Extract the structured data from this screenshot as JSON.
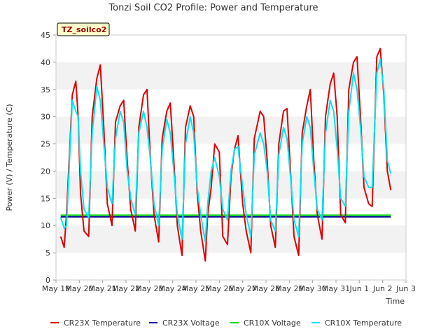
{
  "chart_data": {
    "type": "line",
    "title": "Tonzi Soil CO2 Profile: Power and Temperature",
    "xlabel": "Time",
    "ylabel": "Power (V) / Temperature (C)",
    "ylim": [
      0,
      45
    ],
    "yticks": [
      0,
      5,
      10,
      15,
      20,
      25,
      30,
      35,
      40,
      45
    ],
    "xlim": [
      0,
      15
    ],
    "xticks": [
      {
        "x": 0,
        "label": "May 19"
      },
      {
        "x": 1,
        "label": "May 20"
      },
      {
        "x": 2,
        "label": "May 21"
      },
      {
        "x": 3,
        "label": "May 22"
      },
      {
        "x": 4,
        "label": "May 23"
      },
      {
        "x": 5,
        "label": "May 24"
      },
      {
        "x": 6,
        "label": "May 25"
      },
      {
        "x": 7,
        "label": "May 26"
      },
      {
        "x": 8,
        "label": "May 27"
      },
      {
        "x": 9,
        "label": "May 28"
      },
      {
        "x": 10,
        "label": "May 29"
      },
      {
        "x": 11,
        "label": "May 30"
      },
      {
        "x": 12,
        "label": "May 31"
      },
      {
        "x": 13,
        "label": "Jun 1"
      },
      {
        "x": 14,
        "label": "Jun 2"
      },
      {
        "x": 15,
        "label": "Jun 3"
      }
    ],
    "grid": "horizontal bands",
    "legend_position": "bottom",
    "annotation": "TZ_soilco2",
    "series": [
      {
        "name": "CR23X Temperature",
        "color": "#dd0000",
        "x": [
          0.2,
          0.35,
          0.45,
          0.7,
          0.85,
          0.95,
          1.05,
          1.2,
          1.4,
          1.55,
          1.75,
          1.9,
          2.05,
          2.2,
          2.4,
          2.55,
          2.75,
          2.9,
          3.05,
          3.2,
          3.4,
          3.55,
          3.75,
          3.9,
          4.05,
          4.2,
          4.4,
          4.55,
          4.75,
          4.9,
          5.05,
          5.2,
          5.4,
          5.55,
          5.75,
          5.9,
          6.05,
          6.2,
          6.4,
          6.5,
          6.65,
          6.8,
          7.0,
          7.15,
          7.35,
          7.5,
          7.65,
          7.8,
          8.0,
          8.15,
          8.35,
          8.5,
          8.75,
          8.9,
          9.05,
          9.2,
          9.4,
          9.55,
          9.75,
          9.9,
          10.05,
          10.2,
          10.4,
          10.55,
          10.75,
          10.9,
          11.05,
          11.2,
          11.4,
          11.55,
          11.75,
          11.9,
          12.05,
          12.2,
          12.4,
          12.55,
          12.75,
          12.9,
          13.05,
          13.2,
          13.4,
          13.55,
          13.75,
          13.9,
          14.05,
          14.2,
          14.35
        ],
        "y": [
          8,
          6,
          12,
          34,
          36.5,
          30,
          16,
          9,
          8,
          30,
          37,
          39.5,
          28,
          14,
          10,
          29,
          32,
          33,
          22,
          13,
          9,
          28,
          34,
          35,
          22,
          12,
          7,
          26,
          31,
          32.5,
          22,
          10,
          4.5,
          28,
          32,
          30,
          16,
          9,
          3.5,
          12,
          17,
          25,
          23.5,
          8,
          6.5,
          19,
          24,
          26.5,
          14,
          9,
          5,
          26,
          31,
          30,
          22,
          10,
          6,
          25,
          31,
          31.5,
          20,
          8,
          4.5,
          27,
          32,
          35,
          22,
          12,
          7.5,
          30,
          36,
          38,
          30,
          12,
          10.5,
          35,
          40,
          41,
          30,
          17,
          14,
          13.5,
          41,
          42.5,
          34,
          20,
          16.5
        ]
      },
      {
        "name": "CR23X Voltage",
        "color": "#000099",
        "x": [
          0.2,
          14.35
        ],
        "y": [
          11.6,
          11.6
        ]
      },
      {
        "name": "CR10X Voltage",
        "color": "#00dd00",
        "x": [
          0.2,
          14.35
        ],
        "y": [
          11.9,
          11.9
        ]
      },
      {
        "name": "CR10X Temperature",
        "color": "#00e5ee",
        "x": [
          0.2,
          0.35,
          0.45,
          0.7,
          0.85,
          0.95,
          1.05,
          1.2,
          1.4,
          1.55,
          1.75,
          1.9,
          2.05,
          2.2,
          2.4,
          2.55,
          2.75,
          2.9,
          3.05,
          3.2,
          3.4,
          3.55,
          3.75,
          3.9,
          4.05,
          4.2,
          4.4,
          4.55,
          4.75,
          4.9,
          5.05,
          5.2,
          5.4,
          5.55,
          5.75,
          5.9,
          6.05,
          6.2,
          6.4,
          6.5,
          6.65,
          6.8,
          7.0,
          7.15,
          7.35,
          7.5,
          7.65,
          7.8,
          8.0,
          8.15,
          8.35,
          8.5,
          8.75,
          8.9,
          9.05,
          9.2,
          9.4,
          9.55,
          9.75,
          9.9,
          10.05,
          10.2,
          10.4,
          10.55,
          10.75,
          10.9,
          11.05,
          11.2,
          11.4,
          11.55,
          11.75,
          11.9,
          12.05,
          12.2,
          12.4,
          12.55,
          12.75,
          12.9,
          13.05,
          13.2,
          13.4,
          13.55,
          13.75,
          13.9,
          14.05,
          14.2,
          14.35
        ],
        "y": [
          11.5,
          9.5,
          10,
          33,
          31,
          30,
          20,
          13,
          11.5,
          27,
          35.5,
          33,
          25,
          17,
          14,
          26,
          31,
          29,
          20,
          15,
          12,
          27,
          31,
          28,
          22,
          14,
          10,
          24,
          29.5,
          27,
          20,
          12,
          7.5,
          25,
          30,
          27,
          17,
          12,
          7,
          14,
          20,
          22.5,
          19,
          13,
          11,
          20,
          24,
          24.5,
          17,
          12,
          8,
          23,
          27,
          25,
          20,
          11,
          9,
          23,
          28,
          26,
          19,
          11,
          8,
          25,
          30,
          28,
          20,
          13,
          11,
          27,
          33,
          31,
          24,
          15,
          13.5,
          31,
          38,
          35,
          28,
          19,
          17,
          17,
          38,
          40.5,
          35,
          22,
          19.5
        ]
      }
    ]
  }
}
